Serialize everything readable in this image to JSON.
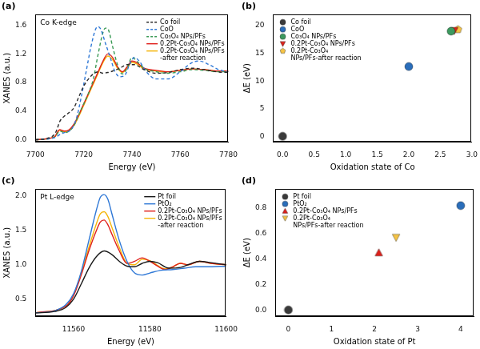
{
  "chart_data": [
    {
      "type": "line",
      "title": "(a)",
      "annotation": "Co K-edge",
      "x_label": "Energy (eV)",
      "y_label": "XANES (a.u.)",
      "xlim": [
        7700,
        7780
      ],
      "xticks": [
        7700,
        7720,
        7740,
        7760,
        7780
      ],
      "ylim": [
        -0.03,
        1.75
      ],
      "yticks": [
        {
          "value": 0,
          "label": "0.0"
        },
        0.4,
        0.8,
        1.2,
        1.6
      ],
      "grid": false,
      "legend": "upper right",
      "series": [
        {
          "name": "Co foil",
          "color": "#2b2b2b",
          "line_style": "dashed",
          "x": [
            7700,
            7705,
            7708,
            7709,
            7710,
            7712,
            7714,
            7716,
            7718,
            7720,
            7722,
            7724,
            7726,
            7728,
            7730,
            7732,
            7735,
            7738,
            7741,
            7745,
            7750,
            7755,
            7760,
            7765,
            7770,
            7775,
            7780
          ],
          "values": [
            0.0,
            0.02,
            0.08,
            0.15,
            0.25,
            0.33,
            0.38,
            0.45,
            0.6,
            0.75,
            0.85,
            0.92,
            0.95,
            0.93,
            0.94,
            0.96,
            1.0,
            1.05,
            1.05,
            0.98,
            0.93,
            0.94,
            0.98,
            1.0,
            0.98,
            0.95,
            0.94
          ]
        },
        {
          "name": "CoO",
          "color": "#2f78d6",
          "line_style": "dashed",
          "x": [
            7700,
            7708,
            7710,
            7712,
            7715,
            7717,
            7719,
            7721,
            7723,
            7725,
            7726,
            7727,
            7729,
            7731,
            7733,
            7735,
            7737,
            7739,
            7741,
            7743,
            7746,
            7750,
            7755,
            7760,
            7765,
            7768,
            7772,
            7776,
            7780
          ],
          "values": [
            0.0,
            0.03,
            0.07,
            0.1,
            0.15,
            0.3,
            0.6,
            0.95,
            1.3,
            1.55,
            1.58,
            1.55,
            1.35,
            1.15,
            0.95,
            0.88,
            0.9,
            1.05,
            1.15,
            1.1,
            0.95,
            0.85,
            0.85,
            0.95,
            1.08,
            1.1,
            1.05,
            0.98,
            0.95
          ]
        },
        {
          "name": "Co₃O₄ NPs/PFs",
          "color": "#3a9a55",
          "line_style": "dashed",
          "x": [
            7700,
            7705,
            7708,
            7709,
            7710,
            7712,
            7714,
            7716,
            7718,
            7720,
            7722,
            7724,
            7726,
            7728,
            7729,
            7730,
            7732,
            7734,
            7736,
            7738,
            7740,
            7742,
            7745,
            7750,
            7755,
            7760,
            7765,
            7770,
            7775,
            7780
          ],
          "values": [
            0.0,
            0.01,
            0.04,
            0.08,
            0.12,
            0.1,
            0.12,
            0.2,
            0.35,
            0.5,
            0.65,
            0.85,
            1.2,
            1.5,
            1.56,
            1.55,
            1.3,
            1.05,
            0.92,
            1.0,
            1.15,
            1.1,
            1.0,
            0.95,
            0.93,
            0.95,
            0.98,
            0.97,
            0.95,
            0.95
          ]
        },
        {
          "name": "0.2Pt-Co₃O₄ NPs/PFs",
          "color": "#e0201b",
          "line_style": "solid",
          "x": [
            7700,
            7708,
            7709,
            7710,
            7712,
            7714,
            7716,
            7718,
            7720,
            7722,
            7724,
            7726,
            7728,
            7730,
            7732,
            7734,
            7736,
            7738,
            7740,
            7742,
            7745,
            7750,
            7755,
            7760,
            7765,
            7770,
            7775,
            7780
          ],
          "values": [
            0.0,
            0.04,
            0.1,
            0.14,
            0.12,
            0.14,
            0.22,
            0.35,
            0.5,
            0.65,
            0.8,
            0.95,
            1.1,
            1.2,
            1.15,
            1.02,
            0.95,
            1.02,
            1.1,
            1.08,
            1.0,
            0.97,
            0.95,
            0.97,
            0.99,
            0.98,
            0.96,
            0.96
          ]
        },
        {
          "name": "0.2Pt-Co₃O₄ NPs/PFs -after reaction",
          "color": "#f5b50a",
          "line_style": "solid",
          "x": [
            7700,
            7708,
            7709,
            7710,
            7712,
            7714,
            7716,
            7718,
            7720,
            7722,
            7724,
            7726,
            7728,
            7730,
            7732,
            7734,
            7736,
            7738,
            7740,
            7742,
            7745,
            7750,
            7755,
            7760,
            7765,
            7770,
            7775,
            7780
          ],
          "values": [
            0.0,
            0.04,
            0.09,
            0.13,
            0.11,
            0.13,
            0.2,
            0.33,
            0.48,
            0.63,
            0.78,
            0.93,
            1.08,
            1.17,
            1.12,
            1.0,
            0.94,
            1.0,
            1.08,
            1.06,
            0.99,
            0.96,
            0.95,
            0.97,
            0.99,
            0.98,
            0.96,
            0.96
          ]
        }
      ]
    },
    {
      "type": "scatter",
      "title": "(b)",
      "x_label": "Oxidation state of Co",
      "y_label": "ΔE (eV)",
      "xlim": [
        -0.15,
        3.0
      ],
      "xticks": [
        {
          "value": 0,
          "label": "0.0"
        },
        0.5,
        {
          "value": 1,
          "label": "1.0"
        },
        1.5,
        {
          "value": 2,
          "label": "2.0"
        },
        2.5,
        {
          "value": 3,
          "label": "3.0"
        }
      ],
      "ylim": [
        -1,
        22
      ],
      "yticks": [
        0,
        5,
        10,
        15,
        20
      ],
      "grid": false,
      "legend": "upper left",
      "series": [
        {
          "name": "Co foil",
          "color": "#3a3a3a",
          "marker": "circle",
          "x": [
            0
          ],
          "values": [
            0
          ]
        },
        {
          "name": "CoO",
          "color": "#2a6ebb",
          "marker": "circle",
          "x": [
            2
          ],
          "values": [
            12.6
          ]
        },
        {
          "name": "Co₃O₄ NPs/PFs",
          "color": "#3c9a5f",
          "marker": "circle",
          "x": [
            2.67
          ],
          "values": [
            19.0
          ]
        },
        {
          "name": "0.2Pt-Co₃O₄ NPs/PFs",
          "color": "#e0201b",
          "marker": "triangle_down",
          "x": [
            2.72
          ],
          "values": [
            19.1
          ]
        },
        {
          "name": "0.2Pt-Co₃O₄ NPs/PFs-after reaction",
          "color": "#f6c445",
          "marker": "pentagon",
          "x": [
            2.78
          ],
          "values": [
            19.3
          ]
        }
      ]
    },
    {
      "type": "line",
      "title": "(c)",
      "annotation": "Pt L-edge",
      "x_label": "Energy (eV)",
      "y_label": "XANES (a.u.)",
      "xlim": [
        11550,
        11600
      ],
      "xticks": [
        11560,
        11580,
        11600
      ],
      "ylim": [
        0.25,
        2.1
      ],
      "yticks": [
        0.5,
        {
          "value": 1,
          "label": "1.0"
        },
        1.5,
        {
          "value": 2,
          "label": "2.0"
        }
      ],
      "grid": false,
      "legend": "upper right",
      "series": [
        {
          "name": "Pt foil",
          "color": "#1a1a1a",
          "line_style": "solid",
          "x": [
            11550,
            11555,
            11558,
            11560,
            11562,
            11564,
            11566,
            11568,
            11570,
            11572,
            11574,
            11576,
            11578,
            11580,
            11582,
            11585,
            11588,
            11590,
            11593,
            11596,
            11600
          ],
          "values": [
            0.3,
            0.32,
            0.38,
            0.5,
            0.72,
            0.95,
            1.12,
            1.2,
            1.15,
            1.05,
            0.98,
            0.97,
            1.02,
            1.05,
            1.03,
            0.95,
            0.96,
            1.0,
            1.05,
            1.03,
            1.0
          ]
        },
        {
          "name": "PtO₂",
          "color": "#2f78d6",
          "line_style": "solid",
          "x": [
            11550,
            11555,
            11558,
            11560,
            11562,
            11564,
            11566,
            11567,
            11568,
            11569,
            11570,
            11572,
            11574,
            11576,
            11578,
            11580,
            11583,
            11586,
            11589,
            11592,
            11595,
            11600
          ],
          "values": [
            0.3,
            0.33,
            0.42,
            0.58,
            0.9,
            1.35,
            1.8,
            1.98,
            2.02,
            1.95,
            1.75,
            1.35,
            1.05,
            0.88,
            0.85,
            0.88,
            0.92,
            0.93,
            0.95,
            0.97,
            0.97,
            0.98
          ]
        },
        {
          "name": "0.2Pt-Co₃O₄ NPs/PFs",
          "color": "#e0201b",
          "line_style": "solid",
          "x": [
            11550,
            11558,
            11560,
            11562,
            11564,
            11566,
            11567,
            11568,
            11569,
            11570,
            11572,
            11574,
            11576,
            11578,
            11580,
            11582,
            11584,
            11586,
            11588,
            11590,
            11593,
            11596,
            11600
          ],
          "values": [
            0.3,
            0.4,
            0.55,
            0.85,
            1.2,
            1.5,
            1.62,
            1.65,
            1.58,
            1.45,
            1.2,
            1.02,
            1.05,
            1.1,
            1.05,
            0.98,
            0.93,
            0.97,
            1.02,
            1.0,
            1.05,
            1.02,
            1.0
          ]
        },
        {
          "name": "0.2Pt-Co₃O₄ NPs/PFs -after reaction",
          "color": "#f5b50a",
          "line_style": "solid",
          "x": [
            11550,
            11558,
            11560,
            11562,
            11564,
            11566,
            11567,
            11568,
            11569,
            11570,
            11572,
            11574,
            11576,
            11578,
            11580,
            11582,
            11584,
            11586,
            11588,
            11590,
            11593,
            11596,
            11600
          ],
          "values": [
            0.3,
            0.4,
            0.56,
            0.88,
            1.25,
            1.6,
            1.74,
            1.77,
            1.7,
            1.55,
            1.25,
            1.02,
            1.0,
            1.08,
            1.06,
            0.99,
            0.94,
            0.97,
            1.02,
            1.0,
            1.05,
            1.02,
            1.0
          ]
        }
      ]
    },
    {
      "type": "scatter",
      "title": "(d)",
      "x_label": "Oxidation state of Pt",
      "y_label": "ΔE (eV)",
      "xlim": [
        -0.3,
        4.3
      ],
      "xticks": [
        0,
        1,
        2,
        3,
        4
      ],
      "ylim": [
        -0.05,
        0.95
      ],
      "yticks": [
        {
          "value": 0,
          "label": "0.0"
        },
        0.2,
        0.4,
        0.6,
        0.8
      ],
      "grid": false,
      "legend": "upper left",
      "series": [
        {
          "name": "Pt foil",
          "color": "#3a3a3a",
          "marker": "circle",
          "x": [
            0
          ],
          "values": [
            0
          ]
        },
        {
          "name": "PtO₂",
          "color": "#2a6ebb",
          "marker": "circle",
          "x": [
            4
          ],
          "values": [
            0.82
          ]
        },
        {
          "name": "0.2Pt-Co₃O₄ NPs/PFs",
          "color": "#e0201b",
          "marker": "triangle",
          "x": [
            2.1
          ],
          "values": [
            0.45
          ]
        },
        {
          "name": "0.2Pt-Co₃O₄ NPs/PFs-after reaction",
          "color": "#f6c445",
          "marker": "triangle_down",
          "x": [
            2.5
          ],
          "values": [
            0.57
          ]
        }
      ]
    }
  ]
}
